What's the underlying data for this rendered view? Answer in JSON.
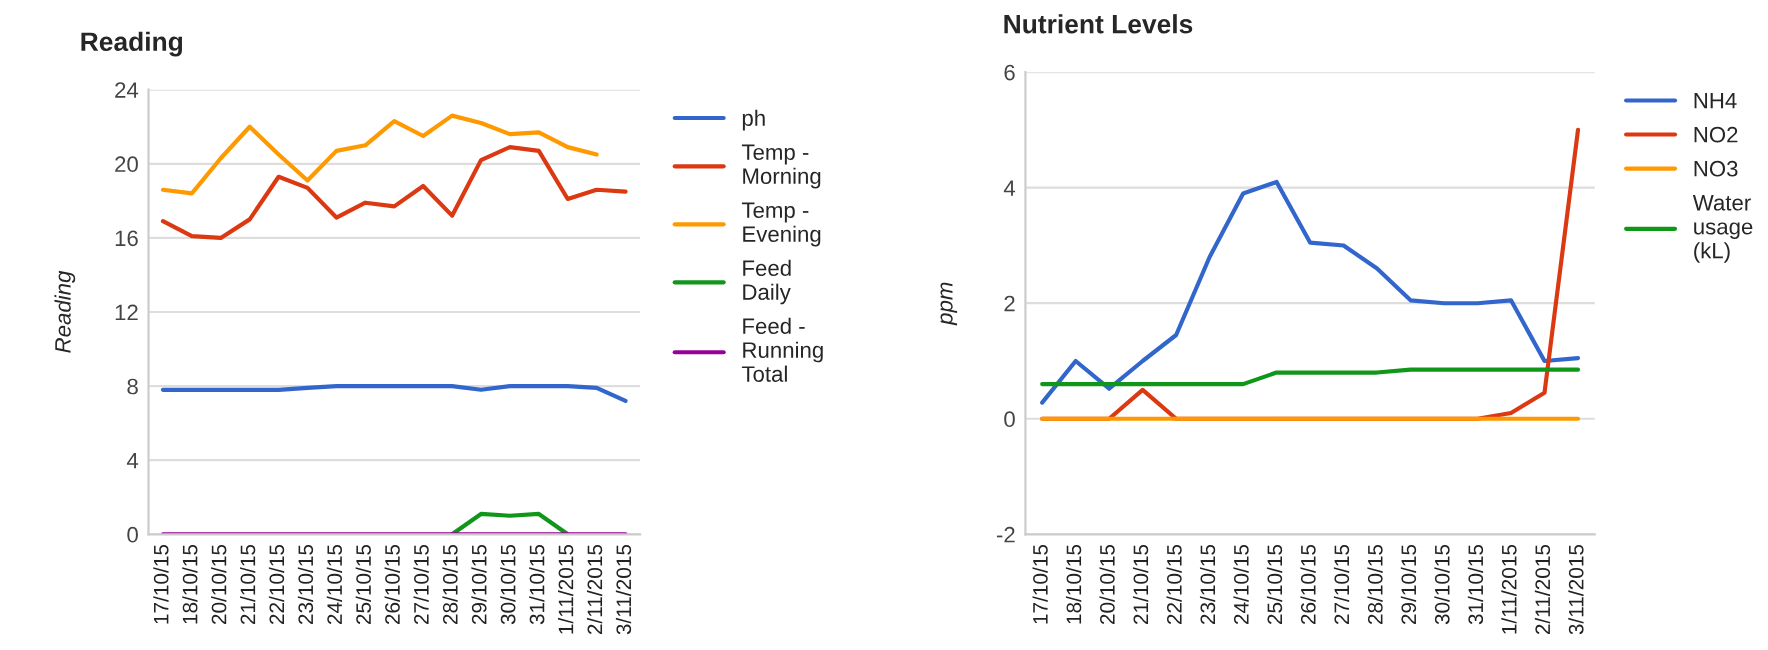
{
  "chart_data": [
    {
      "type": "line",
      "title": "Reading",
      "ylabel": "Reading",
      "categories": [
        "17/10/15",
        "18/10/15",
        "20/10/15",
        "21/10/15",
        "22/10/15",
        "23/10/15",
        "24/10/15",
        "25/10/15",
        "26/10/15",
        "27/10/15",
        "28/10/15",
        "29/10/15",
        "30/10/15",
        "31/10/15",
        "1/11/2015",
        "2/11/2015",
        "3/11/2015"
      ],
      "series": [
        {
          "name": "ph",
          "color": "#3366cc",
          "values": [
            7.8,
            7.8,
            7.8,
            7.8,
            7.8,
            7.9,
            8.0,
            8.0,
            8.0,
            8.0,
            8.0,
            7.8,
            8.0,
            8.0,
            8.0,
            7.9,
            7.2
          ]
        },
        {
          "name": "Temp - Morning",
          "color": "#dc3912",
          "values": [
            16.9,
            16.1,
            16.0,
            17.0,
            19.3,
            18.7,
            17.1,
            17.9,
            17.7,
            18.8,
            17.2,
            20.2,
            20.9,
            20.7,
            18.1,
            18.6,
            18.5
          ]
        },
        {
          "name": "Temp - Evening",
          "color": "#ff9900",
          "values": [
            18.6,
            18.4,
            20.3,
            22.0,
            20.5,
            19.1,
            20.7,
            21.0,
            22.3,
            21.5,
            22.6,
            22.2,
            21.6,
            21.7,
            20.9,
            20.5,
            null
          ]
        },
        {
          "name": "Feed Daily",
          "color": "#109618",
          "values": [
            null,
            null,
            null,
            null,
            null,
            null,
            null,
            null,
            null,
            null,
            0,
            1.1,
            1.0,
            1.1,
            0,
            null,
            null
          ]
        },
        {
          "name": "Feed - Running Total",
          "color": "#990099",
          "values": [
            0,
            0,
            0,
            0,
            0,
            0,
            0,
            0,
            0,
            0,
            0,
            0,
            0,
            0,
            0,
            0,
            0
          ]
        }
      ],
      "ylim": [
        0,
        24
      ],
      "yticks": [
        0,
        4,
        8,
        12,
        16,
        20,
        24
      ],
      "grid": "y",
      "legend": "right"
    },
    {
      "type": "line",
      "title": "Nutrient Levels",
      "ylabel": "ppm",
      "categories": [
        "17/10/15",
        "18/10/15",
        "20/10/15",
        "21/10/15",
        "22/10/15",
        "23/10/15",
        "24/10/15",
        "25/10/15",
        "26/10/15",
        "27/10/15",
        "28/10/15",
        "29/10/15",
        "30/10/15",
        "31/10/15",
        "1/11/2015",
        "2/11/2015",
        "3/11/2015"
      ],
      "series": [
        {
          "name": "NH4",
          "color": "#3366cc",
          "values": [
            0.28,
            1.0,
            0.52,
            1.0,
            1.45,
            2.8,
            3.9,
            4.1,
            3.05,
            3.0,
            2.6,
            2.05,
            2.0,
            2.0,
            2.05,
            1.0,
            1.05
          ]
        },
        {
          "name": "NO2",
          "color": "#dc3912",
          "values": [
            0,
            0,
            0,
            0.5,
            0,
            0,
            0,
            0,
            0,
            0,
            0,
            0,
            0,
            0,
            0.1,
            0.45,
            5.0
          ]
        },
        {
          "name": "NO3",
          "color": "#ff9900",
          "values": [
            0,
            0,
            0,
            0,
            0,
            0,
            0,
            0,
            0,
            0,
            0,
            0,
            0,
            0,
            0,
            0,
            0
          ]
        },
        {
          "name": "Water usage (kL)",
          "color": "#109618",
          "values": [
            0.6,
            0.6,
            0.6,
            0.6,
            0.6,
            0.6,
            0.6,
            0.8,
            0.8,
            0.8,
            0.8,
            0.85,
            0.85,
            0.85,
            0.85,
            0.85,
            0.85
          ]
        }
      ],
      "ylim": [
        -2,
        6
      ],
      "yticks": [
        -2,
        0,
        2,
        4,
        6
      ],
      "grid": "y",
      "legend": "right"
    }
  ]
}
